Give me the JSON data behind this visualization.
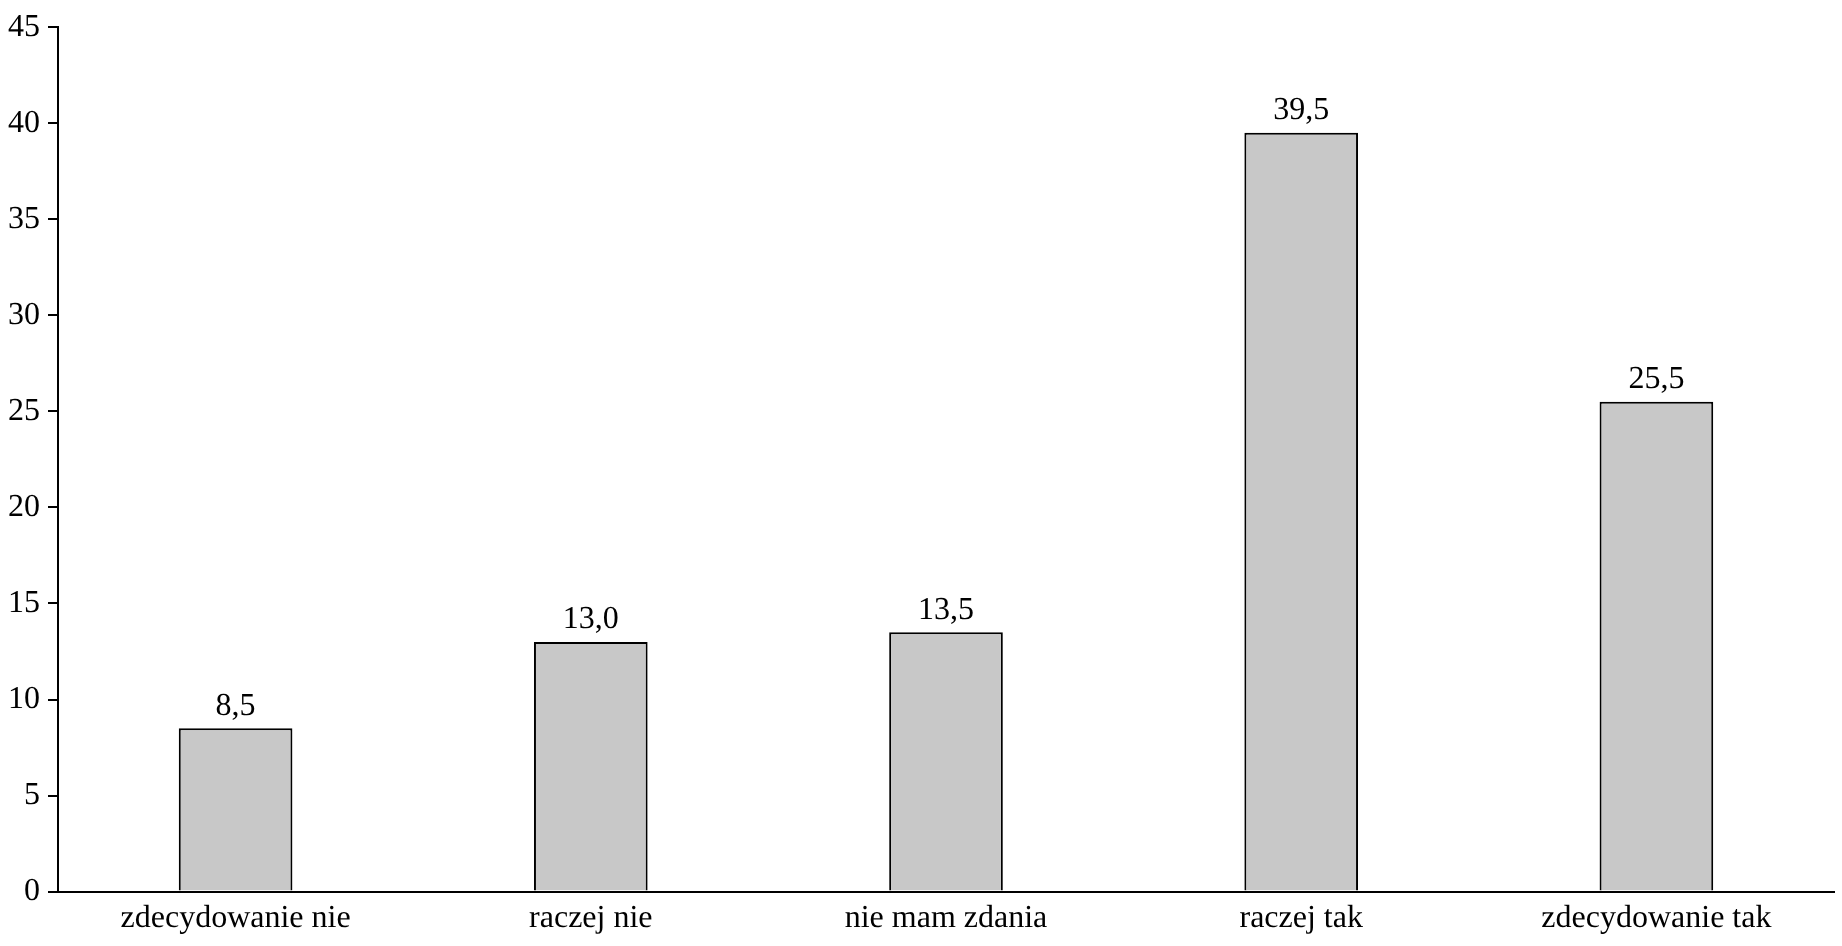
{
  "chart_data": {
    "type": "bar",
    "categories": [
      "zdecydowanie nie",
      "raczej nie",
      "nie mam zdania",
      "raczej tak",
      "zdecydowanie tak"
    ],
    "values": [
      8.5,
      13.0,
      13.5,
      39.5,
      25.5
    ],
    "value_labels": [
      "8,5",
      "13,0",
      "13,5",
      "39,5",
      "25,5"
    ],
    "color": "#c8c8c8",
    "ylim": [
      0,
      45
    ],
    "yticks": [
      0,
      5,
      10,
      15,
      20,
      25,
      30,
      35,
      40,
      45
    ],
    "grid": false,
    "legend": false
  }
}
